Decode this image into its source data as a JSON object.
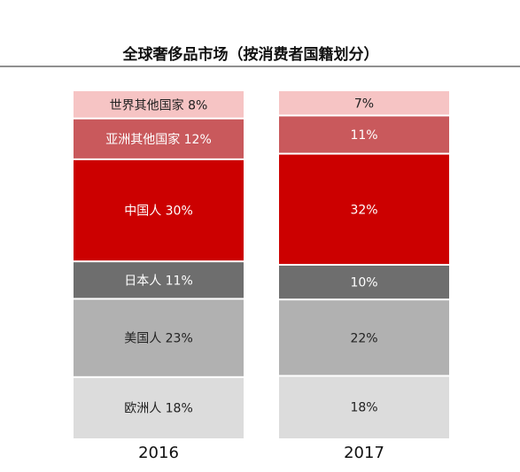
{
  "chart_data": {
    "type": "bar",
    "stacked": true,
    "title": "全球奢侈品市场（按消费者国籍划分）",
    "xlabel": "",
    "ylabel": "",
    "ylim": [
      0,
      100
    ],
    "grid": false,
    "legend": "none",
    "categories": [
      "2016",
      "2017"
    ],
    "series": [
      {
        "name": "欧洲人",
        "color": "#dcdcdc",
        "text_color": "#222222",
        "values": [
          18,
          18
        ],
        "labels": [
          "欧洲人 18%",
          "18%"
        ]
      },
      {
        "name": "美国人",
        "color": "#b1b1b1",
        "text_color": "#222222",
        "values": [
          23,
          22
        ],
        "labels": [
          "美国人 23%",
          "22%"
        ]
      },
      {
        "name": "日本人",
        "color": "#6e6e6e",
        "text_color": "#ffffff",
        "values": [
          11,
          10
        ],
        "labels": [
          "日本人 11%",
          "10%"
        ]
      },
      {
        "name": "中国人",
        "color": "#cc0000",
        "text_color": "#ffffff",
        "values": [
          30,
          32
        ],
        "labels": [
          "中国人 30%",
          "32%"
        ]
      },
      {
        "name": "亚洲其他国家",
        "color": "#c9595c",
        "text_color": "#ffffff",
        "values": [
          12,
          11
        ],
        "labels": [
          "亚洲其他国家 12%",
          "11%"
        ]
      },
      {
        "name": "世界其他国家",
        "color": "#f6c4c4",
        "text_color": "#222222",
        "values": [
          8,
          7
        ],
        "labels": [
          "世界其他国家 8%",
          "7%"
        ]
      }
    ]
  }
}
